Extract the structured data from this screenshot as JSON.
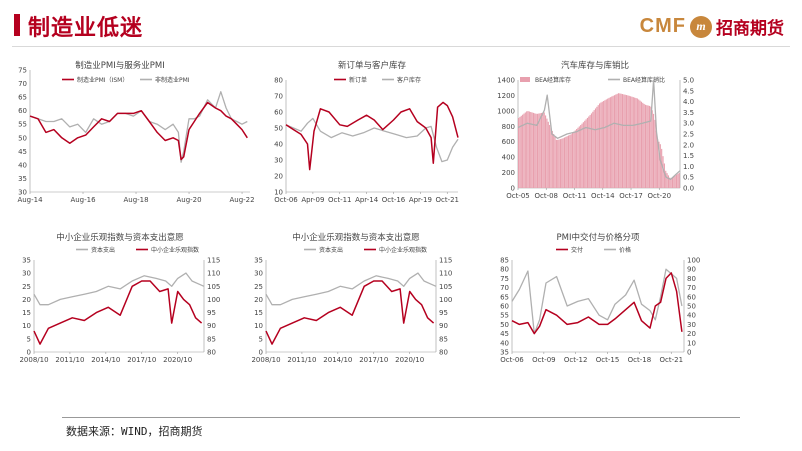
{
  "header": {
    "title": "制造业低迷",
    "brand_en": "CMF",
    "brand_circle": "m",
    "brand_cn": "招商期货"
  },
  "footer": {
    "source": "数据来源：WIND，招商期货"
  },
  "colors": {
    "red": "#b5001f",
    "gray": "#b0b0b0",
    "pink": "#e8a0ae",
    "accent": "#b5001f",
    "brand_gold": "#c8873c"
  },
  "chart_data": [
    {
      "id": "c1",
      "type": "line",
      "title": "制造业PMI与服务业PMI",
      "ylim": [
        30,
        75
      ],
      "yticks": [
        30,
        35,
        40,
        45,
        50,
        55,
        60,
        65,
        70,
        75
      ],
      "xlim": [
        2014.6,
        2022.9
      ],
      "xticks": [
        {
          "v": 2014.6,
          "label": "Aug-14"
        },
        {
          "v": 2016.6,
          "label": "Aug-16"
        },
        {
          "v": 2018.6,
          "label": "Aug-18"
        },
        {
          "v": 2020.6,
          "label": "Aug-20"
        },
        {
          "v": 2022.6,
          "label": "Aug-22"
        }
      ],
      "legend": [
        "制造业PMI（ISM）",
        "非制造业PMI"
      ],
      "series": [
        {
          "name": "非制造业PMI",
          "color": "gray",
          "x": [
            2014.6,
            2014.9,
            2015.2,
            2015.5,
            2015.8,
            2016.1,
            2016.4,
            2016.7,
            2017.0,
            2017.3,
            2017.6,
            2017.9,
            2018.2,
            2018.5,
            2018.8,
            2019.1,
            2019.4,
            2019.7,
            2020.0,
            2020.2,
            2020.3,
            2020.4,
            2020.6,
            2020.8,
            2021.0,
            2021.3,
            2021.6,
            2021.8,
            2022.0,
            2022.2,
            2022.4,
            2022.6,
            2022.8
          ],
          "y": [
            58,
            57,
            56,
            56,
            57,
            54,
            55,
            52,
            57,
            55,
            56,
            59,
            59,
            58,
            60,
            56,
            55,
            53,
            55,
            52,
            41,
            45,
            57,
            57,
            58,
            64,
            61,
            67,
            61,
            57,
            56,
            55,
            56
          ]
        },
        {
          "name": "制造业PMI（ISM）",
          "color": "red",
          "x": [
            2014.6,
            2014.9,
            2015.2,
            2015.5,
            2015.8,
            2016.1,
            2016.4,
            2016.7,
            2017.0,
            2017.3,
            2017.6,
            2017.9,
            2018.2,
            2018.5,
            2018.8,
            2019.1,
            2019.4,
            2019.7,
            2020.0,
            2020.2,
            2020.3,
            2020.4,
            2020.6,
            2020.8,
            2021.0,
            2021.3,
            2021.6,
            2021.8,
            2022.0,
            2022.2,
            2022.4,
            2022.6,
            2022.8
          ],
          "y": [
            58,
            57,
            52,
            53,
            50,
            48,
            50,
            51,
            54,
            57,
            56,
            59,
            59,
            59,
            60,
            56,
            52,
            49,
            50,
            49,
            42,
            43,
            53,
            56,
            59,
            63,
            61,
            60,
            58,
            57,
            55,
            53,
            50
          ]
        }
      ]
    },
    {
      "id": "c2",
      "type": "line",
      "title": "新订单与客户库存",
      "ylim": [
        10,
        80
      ],
      "yticks": [
        10,
        20,
        30,
        40,
        50,
        60,
        70,
        80
      ],
      "xlim": [
        2006.8,
        2022.8
      ],
      "xticks": [
        {
          "v": 2006.8,
          "label": "Oct-06"
        },
        {
          "v": 2009.3,
          "label": "Apr-09"
        },
        {
          "v": 2011.8,
          "label": "Oct-11"
        },
        {
          "v": 2014.3,
          "label": "Apr-14"
        },
        {
          "v": 2016.8,
          "label": "Oct-16"
        },
        {
          "v": 2019.3,
          "label": "Apr-19"
        },
        {
          "v": 2021.8,
          "label": "Oct-21"
        }
      ],
      "legend": [
        "新订单",
        "客户库存"
      ],
      "series": [
        {
          "name": "客户库存",
          "color": "gray",
          "x": [
            2006.8,
            2007.5,
            2008.2,
            2008.8,
            2009.3,
            2010.0,
            2011.0,
            2012.0,
            2013.0,
            2014.0,
            2015.0,
            2016.0,
            2017.0,
            2018.0,
            2019.0,
            2019.8,
            2020.3,
            2020.8,
            2021.3,
            2021.8,
            2022.3,
            2022.8
          ],
          "y": [
            52,
            50,
            48,
            53,
            56,
            48,
            44,
            47,
            45,
            47,
            50,
            48,
            46,
            44,
            45,
            50,
            51,
            38,
            29,
            30,
            38,
            43
          ]
        },
        {
          "name": "新订单",
          "color": "red",
          "x": [
            2006.8,
            2007.5,
            2008.2,
            2008.8,
            2009.0,
            2009.4,
            2010.0,
            2010.8,
            2011.8,
            2012.5,
            2013.5,
            2014.3,
            2015.0,
            2015.8,
            2016.8,
            2017.5,
            2018.3,
            2019.0,
            2019.8,
            2020.3,
            2020.5,
            2020.9,
            2021.4,
            2021.8,
            2022.3,
            2022.8
          ],
          "y": [
            52,
            49,
            46,
            40,
            24,
            48,
            62,
            60,
            52,
            51,
            55,
            58,
            55,
            49,
            55,
            60,
            62,
            54,
            50,
            44,
            28,
            63,
            66,
            64,
            57,
            44
          ]
        }
      ]
    },
    {
      "id": "c3",
      "type": "area",
      "title": "汽车库存与库销比",
      "ylim": [
        0,
        1400
      ],
      "yticks": [
        0,
        200,
        400,
        600,
        800,
        1000,
        1200,
        1400
      ],
      "ylim2": [
        0,
        5
      ],
      "yticks2": [
        "0.0",
        "0.5",
        "1.0",
        "1.5",
        "2.0",
        "2.5",
        "3.0",
        "3.5",
        "4.0",
        "4.5",
        "5.0"
      ],
      "xlim": [
        2005.8,
        2023.0
      ],
      "xticks": [
        {
          "v": 2005.8,
          "label": "Oct-05"
        },
        {
          "v": 2008.8,
          "label": "Oct-08"
        },
        {
          "v": 2011.8,
          "label": "Oct-11"
        },
        {
          "v": 2014.8,
          "label": "Oct-14"
        },
        {
          "v": 2017.8,
          "label": "Oct-17"
        },
        {
          "v": 2020.8,
          "label": "Oct-20"
        }
      ],
      "legend": [
        "BEA经算库存",
        "BEA经算库销比"
      ],
      "series": [
        {
          "name": "BEA经算库存",
          "color": "pink",
          "axis": "left",
          "x": [
            2005.8,
            2006.8,
            2007.8,
            2008.6,
            2009.3,
            2009.9,
            2010.5,
            2011.5,
            2012.5,
            2013.5,
            2014.5,
            2015.5,
            2016.5,
            2017.5,
            2018.5,
            2019.3,
            2019.9,
            2020.3,
            2020.6,
            2021.0,
            2021.5,
            2022.0,
            2022.5,
            2023.0
          ],
          "y": [
            900,
            1000,
            960,
            980,
            780,
            620,
            640,
            700,
            820,
            950,
            1100,
            1170,
            1230,
            1200,
            1160,
            1080,
            1060,
            930,
            640,
            550,
            220,
            120,
            160,
            200
          ]
        },
        {
          "name": "BEA经算库销比",
          "color": "gray",
          "axis": "right",
          "x": [
            2005.8,
            2006.8,
            2007.8,
            2008.6,
            2008.9,
            2009.4,
            2010.0,
            2011.0,
            2012.0,
            2013.0,
            2014.0,
            2015.0,
            2016.0,
            2017.0,
            2018.0,
            2019.0,
            2019.9,
            2020.2,
            2020.5,
            2020.9,
            2021.5,
            2022.0,
            2022.5,
            2023.0
          ],
          "y": [
            2.8,
            3.0,
            2.9,
            3.6,
            4.3,
            2.5,
            2.3,
            2.5,
            2.6,
            2.8,
            2.7,
            2.8,
            3.0,
            2.9,
            2.9,
            3.0,
            3.1,
            5.0,
            2.6,
            1.3,
            0.5,
            0.4,
            0.6,
            0.8
          ]
        }
      ]
    },
    {
      "id": "c4",
      "type": "line",
      "title": "中小企业乐观指数与资本支出意愿",
      "ylim": [
        0,
        35
      ],
      "yticks": [
        0,
        5,
        10,
        15,
        20,
        25,
        30,
        35
      ],
      "ylim2": [
        80,
        115
      ],
      "yticks2": [
        80,
        85,
        90,
        95,
        100,
        105,
        110,
        115
      ],
      "xlim": [
        2008.8,
        2023.0
      ],
      "xticks": [
        {
          "v": 2008.8,
          "label": "2008/10"
        },
        {
          "v": 2011.8,
          "label": "2011/10"
        },
        {
          "v": 2014.8,
          "label": "2014/10"
        },
        {
          "v": 2017.8,
          "label": "2017/10"
        },
        {
          "v": 2020.8,
          "label": "2020/10"
        }
      ],
      "legend": [
        "资本支出",
        "中小企业乐观指数"
      ],
      "series": [
        {
          "name": "资本支出",
          "color": "gray",
          "axis": "left",
          "x": [
            2008.8,
            2009.3,
            2010.0,
            2011.0,
            2012.0,
            2013.0,
            2014.0,
            2015.0,
            2016.0,
            2017.0,
            2018.0,
            2019.0,
            2019.8,
            2020.3,
            2020.8,
            2021.5,
            2022.0,
            2022.5,
            2023.0
          ],
          "y": [
            22,
            18,
            18,
            20,
            21,
            22,
            23,
            25,
            24,
            27,
            29,
            28,
            27,
            25,
            28,
            30,
            27,
            26,
            25
          ]
        },
        {
          "name": "中小企业乐观指数",
          "color": "red",
          "axis": "right",
          "x": [
            2008.8,
            2009.3,
            2010.0,
            2011.0,
            2012.0,
            2013.0,
            2014.0,
            2015.0,
            2016.0,
            2017.0,
            2017.8,
            2018.5,
            2019.3,
            2020.0,
            2020.3,
            2020.8,
            2021.3,
            2021.8,
            2022.3,
            2022.8
          ],
          "y": [
            88,
            83,
            89,
            91,
            93,
            92,
            95,
            97,
            94,
            105,
            107,
            107,
            103,
            104,
            91,
            103,
            100,
            98,
            93,
            91
          ]
        }
      ]
    },
    {
      "id": "c5",
      "type": "line",
      "title": "中小企业乐观指数与资本支出意愿",
      "ylim": [
        0,
        35
      ],
      "yticks": [
        0,
        5,
        10,
        15,
        20,
        25,
        30,
        35
      ],
      "ylim2": [
        80,
        115
      ],
      "yticks2": [
        80,
        85,
        90,
        95,
        100,
        105,
        110,
        115
      ],
      "xlim": [
        2008.8,
        2023.0
      ],
      "xticks": [
        {
          "v": 2008.8,
          "label": "2008/10"
        },
        {
          "v": 2011.8,
          "label": "2011/10"
        },
        {
          "v": 2014.8,
          "label": "2014/10"
        },
        {
          "v": 2017.8,
          "label": "2017/10"
        },
        {
          "v": 2020.8,
          "label": "2020/10"
        }
      ],
      "legend": [
        "资本支出",
        "中小企业乐观指数"
      ],
      "series": [
        {
          "name": "资本支出",
          "color": "gray",
          "axis": "left",
          "x": [
            2008.8,
            2009.3,
            2010.0,
            2011.0,
            2012.0,
            2013.0,
            2014.0,
            2015.0,
            2016.0,
            2017.0,
            2018.0,
            2019.0,
            2019.8,
            2020.3,
            2020.8,
            2021.5,
            2022.0,
            2022.5,
            2023.0
          ],
          "y": [
            22,
            18,
            18,
            20,
            21,
            22,
            23,
            25,
            24,
            27,
            29,
            28,
            27,
            25,
            28,
            30,
            27,
            26,
            25
          ]
        },
        {
          "name": "中小企业乐观指数",
          "color": "red",
          "axis": "right",
          "x": [
            2008.8,
            2009.3,
            2010.0,
            2011.0,
            2012.0,
            2013.0,
            2014.0,
            2015.0,
            2016.0,
            2017.0,
            2017.8,
            2018.5,
            2019.3,
            2020.0,
            2020.3,
            2020.8,
            2021.3,
            2021.8,
            2022.3,
            2022.8
          ],
          "y": [
            88,
            83,
            89,
            91,
            93,
            92,
            95,
            97,
            94,
            105,
            107,
            107,
            103,
            104,
            91,
            103,
            100,
            98,
            93,
            91
          ]
        }
      ]
    },
    {
      "id": "c6",
      "type": "line",
      "title": "PMI中交付与价格分项",
      "ylim": [
        35,
        85
      ],
      "yticks": [
        35,
        40,
        45,
        50,
        55,
        60,
        65,
        70,
        75,
        80,
        85
      ],
      "ylim2": [
        0,
        100
      ],
      "yticks2": [
        0,
        10,
        20,
        30,
        40,
        50,
        60,
        70,
        80,
        90,
        100
      ],
      "xlim": [
        2006.8,
        2023.0
      ],
      "xticks": [
        {
          "v": 2006.8,
          "label": "Oct-06"
        },
        {
          "v": 2009.8,
          "label": "Oct-09"
        },
        {
          "v": 2012.8,
          "label": "Oct-12"
        },
        {
          "v": 2015.8,
          "label": "Oct-15"
        },
        {
          "v": 2018.8,
          "label": "Oct-18"
        },
        {
          "v": 2021.8,
          "label": "Oct-21"
        }
      ],
      "legend": [
        "交付",
        "价格"
      ],
      "series": [
        {
          "name": "价格",
          "color": "gray",
          "axis": "right",
          "x": [
            2006.8,
            2007.5,
            2008.3,
            2008.9,
            2009.4,
            2010.0,
            2011.0,
            2012.0,
            2013.0,
            2014.0,
            2015.0,
            2015.8,
            2016.5,
            2017.5,
            2018.3,
            2019.0,
            2019.8,
            2020.3,
            2020.8,
            2021.3,
            2021.8,
            2022.3,
            2022.8
          ],
          "y": [
            55,
            68,
            88,
            20,
            35,
            75,
            82,
            50,
            55,
            58,
            40,
            35,
            52,
            62,
            78,
            52,
            45,
            35,
            60,
            90,
            85,
            80,
            50
          ]
        },
        {
          "name": "交付",
          "color": "red",
          "axis": "left",
          "x": [
            2006.8,
            2007.5,
            2008.3,
            2008.9,
            2009.4,
            2010.0,
            2011.0,
            2012.0,
            2013.0,
            2014.0,
            2015.0,
            2015.8,
            2016.5,
            2017.5,
            2018.3,
            2019.0,
            2019.8,
            2020.3,
            2020.8,
            2021.3,
            2021.8,
            2022.3,
            2022.8
          ],
          "y": [
            52,
            50,
            51,
            45,
            49,
            58,
            55,
            50,
            51,
            54,
            50,
            50,
            53,
            58,
            62,
            52,
            48,
            60,
            62,
            75,
            78,
            68,
            46
          ]
        }
      ]
    }
  ]
}
